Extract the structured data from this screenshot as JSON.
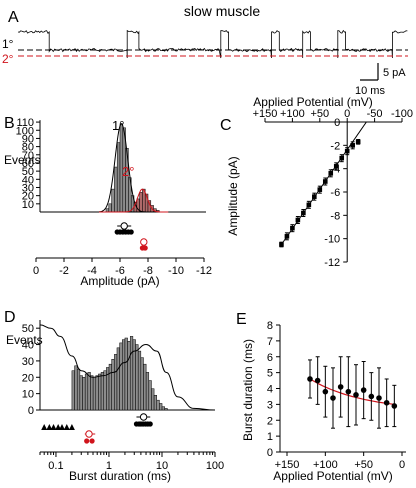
{
  "figure": {
    "panel_a_title": "slow muscle",
    "panel_labels": {
      "a": "A",
      "b": "B",
      "c": "C",
      "d": "D",
      "e": "E"
    }
  },
  "colors": {
    "primary": "#000000",
    "secondary": "#d0141c",
    "histogram_fill": "#8c8c8c"
  },
  "chart_data": [
    {
      "panel": "A",
      "type": "line",
      "title": "slow muscle",
      "description_levels": [
        "1°",
        "2°"
      ],
      "scale_bar": {
        "y_label": "5 pA",
        "x_label": "10 ms"
      },
      "trace": {
        "baseline_pA": 0,
        "primary_level_pA": -6.5,
        "secondary_level_pA": -7.8,
        "duration_ms": 100,
        "bursts_ms": [
          [
            8,
            28
          ],
          [
            31,
            52
          ],
          [
            54,
            65
          ],
          [
            67,
            73
          ],
          [
            75,
            82
          ],
          [
            84,
            96
          ]
        ]
      }
    },
    {
      "panel": "B",
      "type": "bar",
      "xlabel": "Amplitude (pA)",
      "ylabel": "Events",
      "xlim": [
        0,
        -12
      ],
      "ylim": [
        0,
        115
      ],
      "xticks": [
        0,
        -2,
        -4,
        -6,
        -8,
        -10,
        -12
      ],
      "yticks": [
        10,
        20,
        30,
        40,
        50,
        60,
        70,
        80,
        90,
        100,
        110
      ],
      "series_labels": [
        "1°",
        "2°"
      ],
      "bin_width": 0.2,
      "bins_start": [
        -5.0,
        -5.2,
        -5.4,
        -5.6,
        -5.8,
        -6.0,
        -6.2,
        -6.4,
        -6.6,
        -6.8,
        -7.0,
        -7.2,
        -7.4,
        -7.6,
        -7.8,
        -8.0,
        -8.2,
        -8.4,
        -8.6
      ],
      "counts": [
        4,
        10,
        28,
        55,
        85,
        108,
        103,
        78,
        42,
        20,
        12,
        16,
        24,
        28,
        22,
        14,
        8,
        4,
        2
      ],
      "fits": [
        {
          "name": "1°",
          "mean": -6.1,
          "sd": 0.45,
          "peak": 108
        },
        {
          "name": "2°",
          "mean": -7.6,
          "sd": 0.35,
          "peak": 28
        }
      ],
      "markers": {
        "primary_mean": -6.3,
        "primary_points": [
          -5.8,
          -6.0,
          -6.2,
          -6.4,
          -6.6,
          -6.8
        ],
        "secondary_mean": -7.7,
        "secondary_points": [
          -7.6,
          -7.8
        ]
      }
    },
    {
      "panel": "C",
      "type": "scatter",
      "xlabel": "Applied Potential (mV)",
      "ylabel": "Amplitude (pA)",
      "xlim": [
        150,
        -100
      ],
      "ylim": [
        -12,
        0
      ],
      "xticks": [
        150,
        100,
        50,
        0,
        -50,
        -100
      ],
      "xtick_labels": [
        "+150",
        "+100",
        "+50",
        "0",
        "-50",
        "-100"
      ],
      "yticks": [
        0,
        -2,
        -4,
        -6,
        -8,
        -10,
        -12
      ],
      "x": [
        120,
        110,
        100,
        90,
        80,
        70,
        60,
        50,
        40,
        30,
        20,
        10,
        0,
        -10,
        -20
      ],
      "y": [
        -10.5,
        -9.8,
        -9.1,
        -8.4,
        -7.8,
        -7.1,
        -6.4,
        -5.8,
        -5.1,
        -4.4,
        -3.8,
        -3.1,
        -2.5,
        -2.0,
        -1.7
      ],
      "yerr": [
        0.2,
        0.3,
        0.3,
        0.3,
        0.3,
        0.3,
        0.3,
        0.3,
        0.3,
        0.3,
        0.3,
        0.3,
        0.3,
        0.3,
        0.2
      ],
      "fit_line": {
        "x": [
          120,
          -35
        ],
        "y": [
          -10.5,
          0
        ]
      }
    },
    {
      "panel": "D",
      "type": "bar",
      "xlabel": "Burst duration (ms)",
      "ylabel": "Events",
      "x_scale": "log",
      "xlim": [
        0.05,
        100
      ],
      "ylim": [
        0,
        55
      ],
      "xticks": [
        0.1,
        1,
        10,
        100
      ],
      "yticks": [
        0,
        10,
        20,
        30,
        40,
        50
      ],
      "log_bin_edges_start": 0.2,
      "log_bins_per_decade": 20,
      "counts": [
        24,
        27,
        25,
        21,
        20,
        22,
        23,
        21,
        20,
        21,
        22,
        23,
        24,
        26,
        28,
        31,
        34,
        38,
        41,
        43,
        44,
        42,
        45,
        43,
        40,
        36,
        32,
        28,
        23,
        18,
        13,
        9,
        6,
        4,
        2,
        1
      ],
      "fit_curve_x": [
        0.05,
        0.08,
        0.12,
        0.2,
        0.3,
        0.5,
        0.8,
        1.2,
        2,
        3,
        5,
        8,
        12,
        20,
        40,
        100
      ],
      "fit_curve_y": [
        52,
        50,
        45,
        33,
        24,
        20,
        21,
        23,
        29,
        36,
        40,
        36,
        23,
        8,
        1,
        0
      ],
      "markers": {
        "triangles": [
          0.06,
          0.075,
          0.09,
          0.11,
          0.13,
          0.16,
          0.2
        ],
        "secondary_mean": 0.42,
        "secondary_points": [
          0.35,
          0.38,
          0.42,
          0.48,
          0.55
        ],
        "primary_mean": 4.5,
        "primary_points": [
          3.3,
          3.7,
          4.0,
          4.4,
          4.9,
          5.4,
          6.0
        ]
      }
    },
    {
      "panel": "E",
      "type": "scatter",
      "xlabel": "Applied Potential (mV)",
      "ylabel": "Burst duration (ms)",
      "xlim": [
        150,
        0
      ],
      "ylim": [
        0,
        8
      ],
      "xticks": [
        150,
        100,
        50,
        0
      ],
      "xtick_labels": [
        "+150",
        "+100",
        "+50",
        "0"
      ],
      "yticks": [
        0,
        1,
        2,
        3,
        4,
        5,
        6,
        7,
        8
      ],
      "x": [
        120,
        110,
        100,
        90,
        80,
        70,
        60,
        50,
        40,
        30,
        20,
        10
      ],
      "y": [
        4.6,
        4.5,
        3.8,
        3.4,
        4.1,
        3.8,
        3.6,
        3.9,
        3.5,
        3.4,
        3.1,
        2.9
      ],
      "yerr": [
        1.2,
        1.5,
        1.6,
        1.9,
        1.9,
        2.2,
        1.9,
        1.8,
        1.5,
        1.9,
        1.5,
        1.3
      ],
      "fit_curve": {
        "x": [
          120,
          10
        ],
        "y": [
          4.6,
          3.0
        ]
      }
    }
  ]
}
